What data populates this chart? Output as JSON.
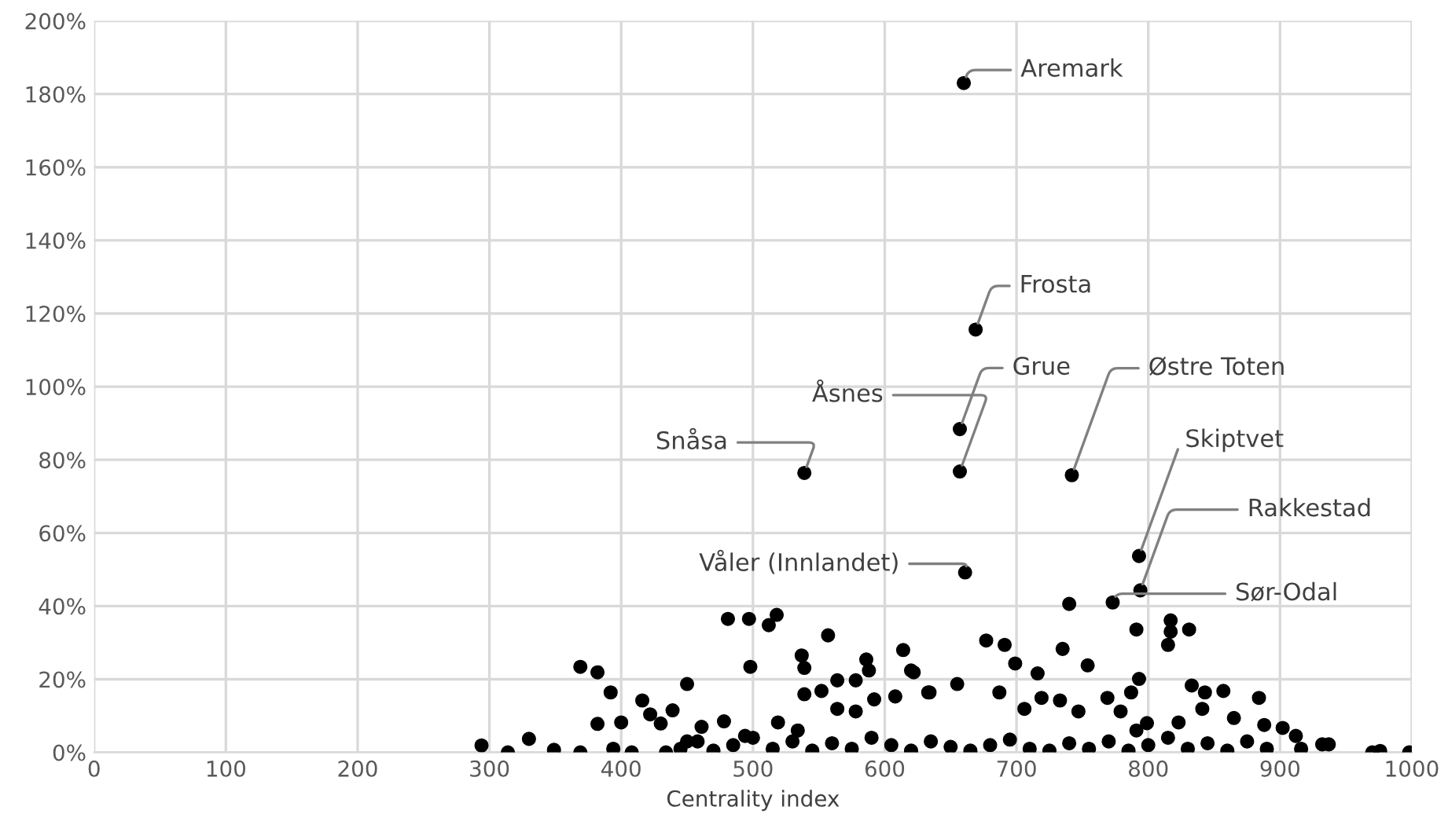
{
  "chart_data": {
    "type": "scatter",
    "xlabel": "Centrality index",
    "xlim": [
      0,
      1000
    ],
    "xticks": [
      0,
      100,
      200,
      300,
      400,
      500,
      600,
      700,
      800,
      900,
      1000
    ],
    "ylim": [
      0,
      200
    ],
    "yticks": [
      {
        "value": 0,
        "label": "0%"
      },
      {
        "value": 20,
        "label": "20%"
      },
      {
        "value": 40,
        "label": "40%"
      },
      {
        "value": 60,
        "label": "60%"
      },
      {
        "value": 80,
        "label": "80%"
      },
      {
        "value": 100,
        "label": "100%"
      },
      {
        "value": 120,
        "label": "120%"
      },
      {
        "value": 140,
        "label": "140%"
      },
      {
        "value": 160,
        "label": "160%"
      },
      {
        "value": 180,
        "label": "180%"
      },
      {
        "value": 200,
        "label": "200%"
      }
    ],
    "grid": true,
    "marker": "circle",
    "series": [
      {
        "color": "#000000",
        "x": [
          660,
          669,
          657,
          657,
          539,
          742,
          793,
          794,
          773,
          661,
          740,
          294,
          314,
          330,
          349,
          369,
          369,
          382,
          392,
          382,
          400,
          394,
          408,
          416,
          422,
          430,
          439,
          450,
          434,
          450,
          461,
          478,
          481,
          497,
          498,
          512,
          518,
          519,
          537,
          539,
          557,
          539,
          552,
          564,
          578,
          586,
          588,
          614,
          622,
          634,
          592,
          608,
          564,
          578,
          534,
          494,
          817,
          831,
          815,
          817,
          791,
          677,
          691,
          699,
          716,
          735,
          754,
          793,
          787,
          769,
          779,
          747,
          733,
          719,
          706,
          687,
          655,
          633,
          620,
          833,
          843,
          857,
          884,
          841,
          865,
          823,
          888,
          902,
          912,
          932,
          937,
          970,
          976,
          998,
          916,
          791,
          799,
          445,
          458,
          470,
          485,
          500,
          515,
          530,
          545,
          560,
          575,
          590,
          605,
          620,
          635,
          650,
          665,
          680,
          695,
          710,
          725,
          740,
          755,
          770,
          785,
          800,
          815,
          830,
          845,
          860,
          875,
          890
        ],
        "values": [
          183,
          115.6,
          88.4,
          76.8,
          76.4,
          75.8,
          53.7,
          44.3,
          41,
          49.2,
          40.6,
          1.9,
          0,
          3.7,
          0.7,
          0,
          23.4,
          21.9,
          16.4,
          7.8,
          8.2,
          1,
          0,
          14.2,
          10.4,
          7.9,
          11.5,
          18.7,
          0,
          3,
          7,
          8.5,
          36.5,
          36.5,
          23.4,
          34.8,
          37.6,
          8.2,
          26.5,
          23.1,
          32,
          15.9,
          16.8,
          19.7,
          19.7,
          25.4,
          22.4,
          28,
          21.9,
          16.4,
          14.5,
          15.3,
          11.9,
          11.2,
          6,
          4.5,
          36.1,
          33.6,
          29.4,
          33,
          33.6,
          30.6,
          29.4,
          24.3,
          21.6,
          28.3,
          23.8,
          20.1,
          16.4,
          14.9,
          11.2,
          11.2,
          14.2,
          14.9,
          11.9,
          16.4,
          18.7,
          16.4,
          22.4,
          18.3,
          16.4,
          16.8,
          14.9,
          11.9,
          9.4,
          8.2,
          7.5,
          6.7,
          4.5,
          2.2,
          2.2,
          0,
          0.4,
          0,
          1,
          6,
          8,
          1,
          3,
          0.5,
          2,
          4,
          1,
          3,
          0.5,
          2.5,
          1,
          4,
          2,
          0.5,
          3,
          1.5,
          0.5,
          2,
          3.5,
          1,
          0.5,
          2.5,
          1,
          3,
          0.5,
          2,
          4,
          1,
          2.5,
          0.5,
          3,
          1
        ]
      }
    ],
    "annotations": [
      {
        "text": "Aremark",
        "x": 660,
        "y": 183
      },
      {
        "text": "Frosta",
        "x": 669,
        "y": 115.6
      },
      {
        "text": "Grue",
        "x": 657,
        "y": 88.4
      },
      {
        "text": "Åsnes",
        "x": 657,
        "y": 76.8
      },
      {
        "text": "Snåsa",
        "x": 539,
        "y": 76.4
      },
      {
        "text": "Østre Toten",
        "x": 742,
        "y": 75.8
      },
      {
        "text": "Skiptvet",
        "x": 793,
        "y": 53.7
      },
      {
        "text": "Rakkestad",
        "x": 794,
        "y": 44.3
      },
      {
        "text": "Sør-Odal",
        "x": 773,
        "y": 41
      },
      {
        "text": "Våler (Innlandet)",
        "x": 661,
        "y": 49.2
      }
    ]
  }
}
